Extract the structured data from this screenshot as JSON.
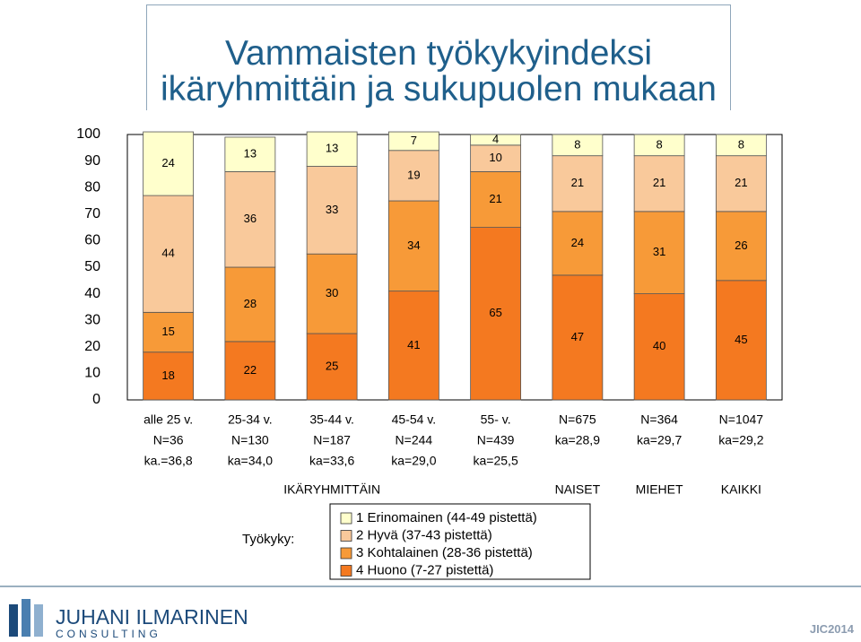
{
  "title": {
    "line1": "Vammaisten työkykyindeksi",
    "line2": "ikäryhmittäin ja sukupuolen mukaan"
  },
  "chart_data": {
    "type": "bar",
    "stacked": true,
    "ylim": [
      0,
      100
    ],
    "yticks": [
      "100",
      "90",
      "80",
      "70",
      "60",
      "50",
      "40",
      "30",
      "20",
      "10",
      "0"
    ],
    "grid": false,
    "categories": [
      [
        "alle 25 v.",
        "N=36",
        "ka.=36,8"
      ],
      [
        "25-34 v.",
        "N=130",
        "ka=34,0"
      ],
      [
        "35-44 v.",
        "N=187",
        "ka=33,6"
      ],
      [
        "45-54 v.",
        "N=244",
        "ka=29,0"
      ],
      [
        "55- v.",
        "N=439",
        "ka=25,5"
      ],
      [
        "N=675",
        "ka=28,9"
      ],
      [
        "N=364",
        "ka=29,7"
      ],
      [
        "N=1047",
        "ka=29,2"
      ]
    ],
    "series": [
      {
        "name": "4 Huono (7-27 pistettä)",
        "color": "#f47920",
        "values": [
          18,
          22,
          25,
          41,
          65,
          47,
          40,
          45
        ]
      },
      {
        "name": "3 Kohtalainen (28-36 pistettä)",
        "color": "#f79a38",
        "values": [
          15,
          28,
          30,
          34,
          21,
          24,
          31,
          26
        ]
      },
      {
        "name": "2 Hyvä (37-43 pistettä)",
        "color": "#f9c99b",
        "values": [
          44,
          36,
          33,
          19,
          10,
          21,
          21,
          21
        ]
      },
      {
        "name": "1 Erinomainen (44-49 pistettä)",
        "color": "#ffffcc",
        "values": [
          24,
          13,
          13,
          7,
          4,
          8,
          8,
          8
        ]
      }
    ],
    "group_labels": [
      "IKÄRYHMITTÄIN",
      "NAISET",
      "MIEHET",
      "KAIKKI"
    ],
    "legend_title": "Työkyky:",
    "legend_placement": "bottom-center"
  },
  "footer": {
    "logo_name": "JUHANI ILMARINEN",
    "logo_sub": "CONSULTING",
    "mark": "JIC2014"
  }
}
